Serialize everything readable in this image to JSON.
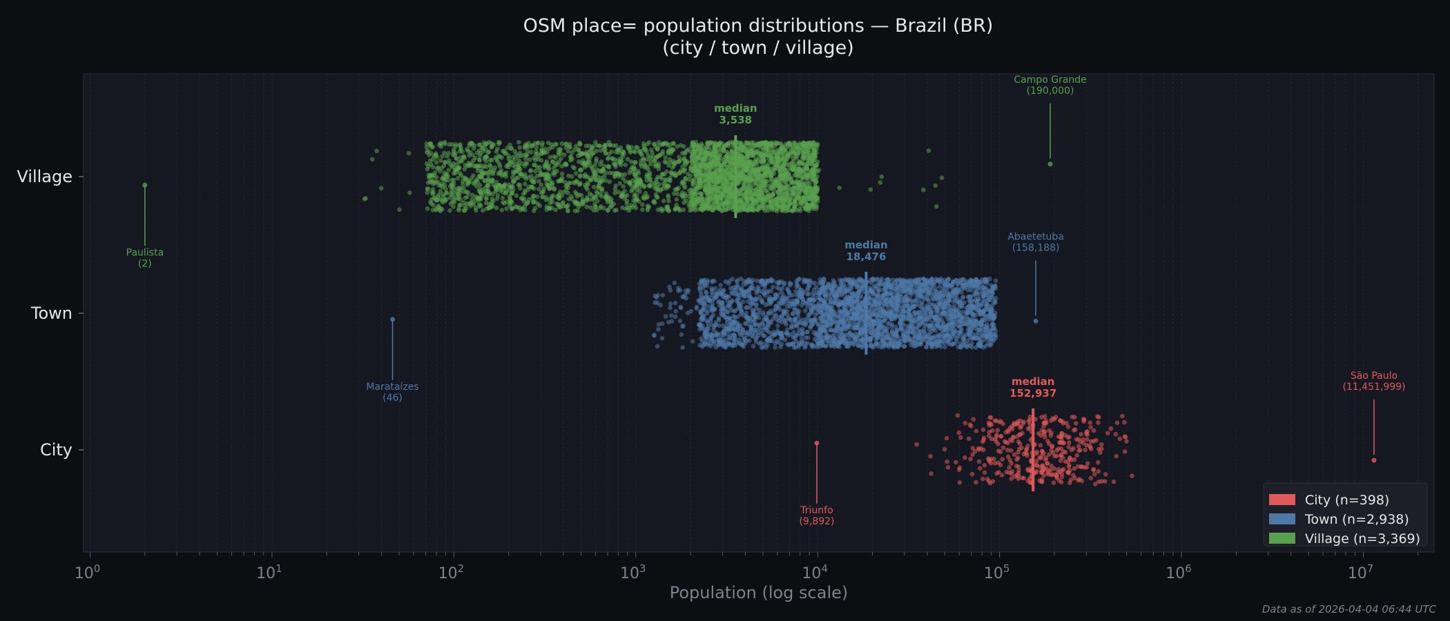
{
  "chart_data": {
    "type": "scatter",
    "subtype": "strip (jittered) plot",
    "title": "OSM place= population distributions — Brazil (BR)",
    "subtitle": "(city / town / village)",
    "xlabel": "Population (log scale)",
    "ylabel": "",
    "xscale": "log",
    "xlim": [
      0.92,
      24500000
    ],
    "x_ticks": [
      {
        "value": 1,
        "base": "10",
        "exp": "0"
      },
      {
        "value": 10,
        "base": "10",
        "exp": "1"
      },
      {
        "value": 100,
        "base": "10",
        "exp": "2"
      },
      {
        "value": 1000,
        "base": "10",
        "exp": "3"
      },
      {
        "value": 10000,
        "base": "10",
        "exp": "4"
      },
      {
        "value": 100000,
        "base": "10",
        "exp": "5"
      },
      {
        "value": 1000000,
        "base": "10",
        "exp": "6"
      },
      {
        "value": 10000000,
        "base": "10",
        "exp": "7"
      }
    ],
    "categories": [
      "Village",
      "Town",
      "City"
    ],
    "grid": "vertical, faint dashed at major and minor ticks",
    "legend_position": "bottom-right",
    "series": [
      {
        "name": "City",
        "legend_label": "City  (n=398)",
        "n": 398,
        "color": "#e05a5a",
        "median": 152937,
        "median_label": "median",
        "median_value_label": "152,937",
        "typical_range": [
          20000,
          3000000
        ],
        "min": {
          "name": "Triunfo",
          "value": 9892,
          "label": "Triunfo",
          "value_label": "(9,892)"
        },
        "max": {
          "name": "São Paulo",
          "value": 11451999,
          "label": "São Paulo",
          "value_label": "(11,451,999)"
        }
      },
      {
        "name": "Town",
        "legend_label": "Town  (n=2,938)",
        "n": 2938,
        "color": "#4e79a7",
        "median": 18476,
        "median_label": "median",
        "median_value_label": "18,476",
        "typical_range": [
          1300,
          98000
        ],
        "min": {
          "name": "Marataízes",
          "value": 46,
          "label": "Marataízes",
          "value_label": "(46)"
        },
        "max": {
          "name": "Abaetetuba",
          "value": 158188,
          "label": "Abaetetuba",
          "value_label": "(158,188)"
        }
      },
      {
        "name": "Village",
        "legend_label": "Village  (n=3,369)",
        "n": 3369,
        "color": "#59a14f",
        "median": 3538,
        "median_label": "median",
        "median_value_label": "3,538",
        "typical_range": [
          30,
          10000
        ],
        "min": {
          "name": "Paulista",
          "value": 2,
          "label": "Paulista",
          "value_label": "(2)"
        },
        "max": {
          "name": "Campo Grande",
          "value": 190000,
          "label": "Campo Grande",
          "value_label": "(190,000)"
        }
      }
    ]
  },
  "footer": "Data as of 2026-04-04 06:44 UTC"
}
